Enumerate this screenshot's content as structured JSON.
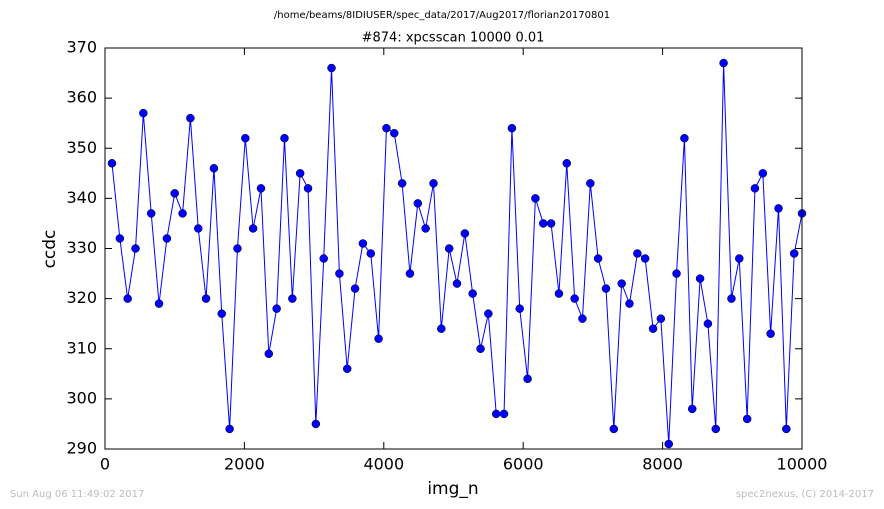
{
  "chart_data": {
    "type": "line",
    "suptitle": "/home/beams/8IDIUSER/spec_data/2017/Aug2017/florian20170801",
    "title": "#874: xpcsscan 10000 0.01",
    "xlabel": "img_n",
    "ylabel": "ccdc",
    "footer_left": "Sun Aug 06 11:49:02 2017",
    "footer_right": "spec2nexus, (C) 2014-2017",
    "x": [
      100,
      213,
      325,
      438,
      550,
      663,
      775,
      888,
      1000,
      1113,
      1225,
      1338,
      1450,
      1563,
      1675,
      1788,
      1900,
      2013,
      2125,
      2238,
      2350,
      2463,
      2575,
      2688,
      2800,
      2913,
      3025,
      3138,
      3250,
      3363,
      3475,
      3588,
      3700,
      3813,
      3925,
      4038,
      4150,
      4263,
      4375,
      4488,
      4600,
      4713,
      4825,
      4938,
      5050,
      5163,
      5275,
      5388,
      5500,
      5613,
      5725,
      5838,
      5950,
      6063,
      6175,
      6288,
      6400,
      6513,
      6625,
      6738,
      6850,
      6963,
      7075,
      7188,
      7300,
      7413,
      7525,
      7638,
      7750,
      7863,
      7975,
      8088,
      8200,
      8313,
      8425,
      8538,
      8650,
      8763,
      8875,
      8988,
      9100,
      9213,
      9325,
      9438,
      9550,
      9663,
      9775,
      9888,
      10000
    ],
    "series": [
      {
        "color": "#0000ff",
        "values": [
          347,
          332,
          320,
          330,
          357,
          337,
          319,
          332,
          341,
          337,
          356,
          334,
          320,
          346,
          317,
          294,
          330,
          352,
          334,
          342,
          309,
          318,
          352,
          320,
          345,
          342,
          295,
          328,
          366,
          325,
          306,
          322,
          331,
          329,
          312,
          354,
          353,
          343,
          325,
          339,
          334,
          343,
          314,
          330,
          323,
          333,
          321,
          310,
          317,
          297,
          297,
          354,
          318,
          304,
          340,
          335,
          335,
          321,
          347,
          320,
          316,
          343,
          328,
          322,
          294,
          323,
          319,
          329,
          328,
          314,
          316,
          291,
          325,
          352,
          298,
          324,
          315,
          294,
          367,
          320,
          328,
          296,
          342,
          345,
          313,
          338,
          294,
          329,
          337
        ]
      }
    ],
    "xlim": [
      0,
      10000
    ],
    "xticks": [
      0,
      2000,
      4000,
      6000,
      8000,
      10000
    ],
    "ylim": [
      290,
      370
    ],
    "yticks": [
      290,
      300,
      310,
      320,
      330,
      340,
      350,
      360,
      370
    ],
    "grid": false
  }
}
